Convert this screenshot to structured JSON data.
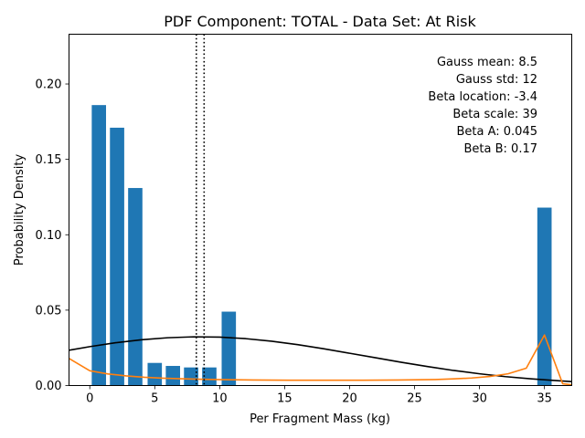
{
  "chart_data": {
    "type": "bar",
    "title": "PDF Component: TOTAL - Data Set: At Risk",
    "xlabel": "Per Fragment Mass (kg)",
    "ylabel": "Probability Density",
    "xlim": [
      -1.6,
      37.1
    ],
    "ylim": [
      0,
      0.233
    ],
    "xticks": [
      0,
      5,
      10,
      15,
      20,
      25,
      30,
      35
    ],
    "yticks": [
      0.0,
      0.05,
      0.1,
      0.15,
      0.2
    ],
    "ytick_labels": [
      "0.00",
      "0.05",
      "0.10",
      "0.15",
      "0.20"
    ],
    "grid": false,
    "bar_color": "#1f77b4",
    "bar_width": 1.1,
    "bars": {
      "x": [
        0.7,
        2.1,
        3.5,
        5.0,
        6.4,
        7.8,
        9.2,
        10.7,
        35.0
      ],
      "values": [
        0.186,
        0.171,
        0.131,
        0.015,
        0.013,
        0.012,
        0.012,
        0.049,
        0.118
      ]
    },
    "series": [
      {
        "color": "#000000",
        "x": [
          -1.6,
          0,
          2,
          4,
          6,
          8,
          10,
          12,
          14,
          16,
          18,
          20,
          22,
          24,
          26,
          28,
          30,
          32,
          34,
          36,
          37.1
        ],
        "values": [
          0.0234,
          0.0258,
          0.0284,
          0.0304,
          0.0317,
          0.0323,
          0.0321,
          0.0311,
          0.0294,
          0.0271,
          0.0244,
          0.0214,
          0.0184,
          0.0154,
          0.0126,
          0.01,
          0.0078,
          0.0059,
          0.0044,
          0.0032,
          0.0026
        ]
      },
      {
        "color": "#ff7f0e",
        "x": [
          -1.6,
          0,
          1.4,
          2.8,
          4.2,
          5.6,
          7.0,
          8.4,
          9.8,
          11.2,
          12.6,
          14.0,
          15.4,
          16.8,
          18.2,
          19.6,
          21.0,
          22.4,
          23.8,
          25.2,
          26.6,
          28.0,
          29.4,
          30.8,
          32.2,
          33.6,
          35.0,
          36.4,
          37.1
        ],
        "values": [
          0.018,
          0.0098,
          0.0077,
          0.0064,
          0.0055,
          0.0049,
          0.0045,
          0.0042,
          0.004,
          0.0038,
          0.0037,
          0.0036,
          0.0035,
          0.0035,
          0.0035,
          0.0035,
          0.0035,
          0.0036,
          0.0037,
          0.0038,
          0.004,
          0.0044,
          0.005,
          0.006,
          0.0078,
          0.0115,
          0.0335,
          0.0012,
          0.0005
        ]
      }
    ],
    "vlines": [
      {
        "x": 8.2,
        "style": "dotted",
        "color": "#000000"
      },
      {
        "x": 8.8,
        "style": "dotted",
        "color": "#000000"
      }
    ],
    "annotations": [
      "Gauss mean: 8.5",
      "Gauss std: 12",
      "Beta location: -3.4",
      "Beta scale: 39",
      "Beta A: 0.045",
      "Beta B: 0.17"
    ]
  }
}
